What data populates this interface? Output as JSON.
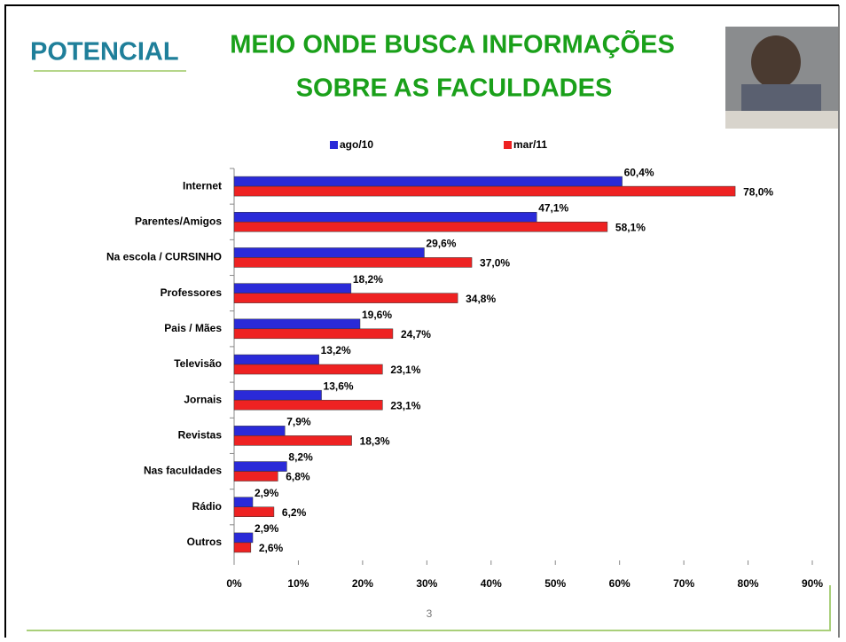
{
  "logo": "POTENCIAL",
  "page_number": "3",
  "chart_data": {
    "type": "hbar",
    "title": [
      "MEIO ONDE BUSCA INFORMAÇÕES",
      "SOBRE AS FACULDADES"
    ],
    "categories": [
      "Internet",
      "Parentes/Amigos",
      "Na escola / CURSINHO",
      "Professores",
      "Pais / Mães",
      "Televisão",
      "Jornais",
      "Revistas",
      "Nas faculdades",
      "Rádio",
      "Outros"
    ],
    "series": [
      {
        "name": "ago/10",
        "color": "#2a2ad8",
        "values": [
          60.4,
          47.1,
          29.6,
          18.2,
          19.6,
          13.2,
          13.6,
          7.9,
          8.2,
          2.9,
          2.9
        ],
        "value_labels": [
          "60,4%",
          "47,1%",
          "29,6%",
          "18,2%",
          "19,6%",
          "13,2%",
          "13,6%",
          "7,9%",
          "8,2%",
          "2,9%",
          "2,9%"
        ]
      },
      {
        "name": "mar/11",
        "color": "#ee2222",
        "values": [
          78.0,
          58.1,
          37.0,
          34.8,
          24.7,
          23.1,
          23.1,
          18.3,
          6.8,
          6.2,
          2.6
        ],
        "value_labels": [
          "78,0%",
          "58,1%",
          "37,0%",
          "34,8%",
          "24,7%",
          "23,1%",
          "23,1%",
          "18,3%",
          "6,8%",
          "6,2%",
          "2,6%"
        ]
      }
    ],
    "xlim": [
      0,
      90
    ],
    "xticks": [
      {
        "value": 0,
        "label": "0%"
      },
      {
        "value": 10,
        "label": "10%"
      },
      {
        "value": 20,
        "label": "20%"
      },
      {
        "value": 30,
        "label": "30%"
      },
      {
        "value": 40,
        "label": "40%"
      },
      {
        "value": 50,
        "label": "50%"
      },
      {
        "value": 60,
        "label": "60%"
      },
      {
        "value": 70,
        "label": "70%"
      },
      {
        "value": 80,
        "label": "80%"
      },
      {
        "value": 90,
        "label": "90%"
      }
    ],
    "legend": "top"
  }
}
